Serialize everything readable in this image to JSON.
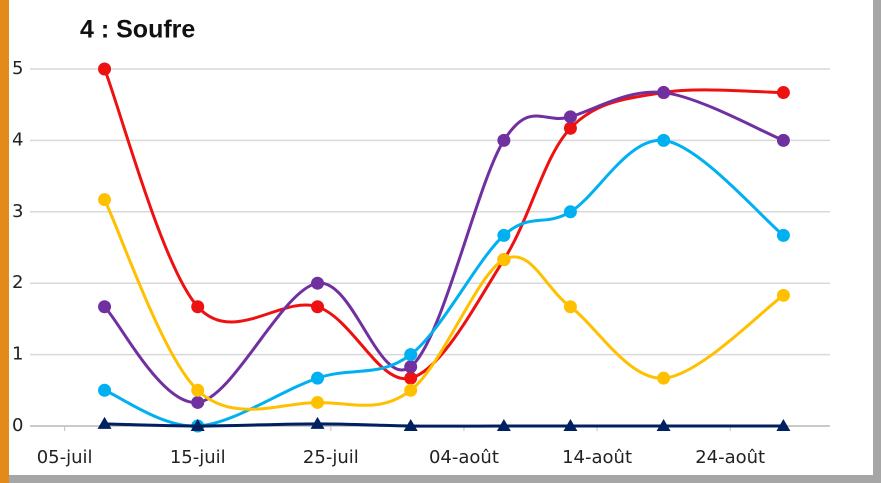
{
  "chart_data": {
    "type": "line",
    "title": "4 : Soufre",
    "x": [
      8,
      15,
      24,
      31,
      38,
      43,
      50,
      59
    ],
    "series": [
      {
        "color": "#ee1111",
        "marker": "circle",
        "values": [
          5,
          1.67,
          1.67,
          0.67,
          2.33,
          4.17,
          4.67,
          4.67
        ]
      },
      {
        "color": "#7030a0",
        "marker": "circle",
        "values": [
          1.67,
          0.33,
          2,
          0.83,
          4,
          4.33,
          4.67,
          4
        ]
      },
      {
        "color": "#00b0f0",
        "marker": "circle",
        "values": [
          0.5,
          0,
          0.67,
          1,
          2.67,
          3,
          4,
          2.67
        ]
      },
      {
        "color": "#ffc000",
        "marker": "circle",
        "values": [
          3.17,
          0.5,
          0.33,
          0.5,
          2.33,
          1.67,
          0.67,
          1.83
        ]
      },
      {
        "color": "#002060",
        "marker": "triangle",
        "values": [
          0.03,
          0,
          0.03,
          0,
          0,
          0,
          0,
          0
        ]
      }
    ],
    "xlim": [
      2.4,
      62.5
    ],
    "xticks": [
      {
        "value": 5,
        "label": "05-juil"
      },
      {
        "value": 15,
        "label": "15-juil"
      },
      {
        "value": 25,
        "label": "25-juil"
      },
      {
        "value": 35,
        "label": "04-août"
      },
      {
        "value": 45,
        "label": "14-août"
      },
      {
        "value": 55,
        "label": "24-août"
      }
    ],
    "ylim": [
      0,
      5
    ],
    "yticks": [
      0,
      1,
      2,
      3,
      4,
      5
    ],
    "grid": true
  }
}
